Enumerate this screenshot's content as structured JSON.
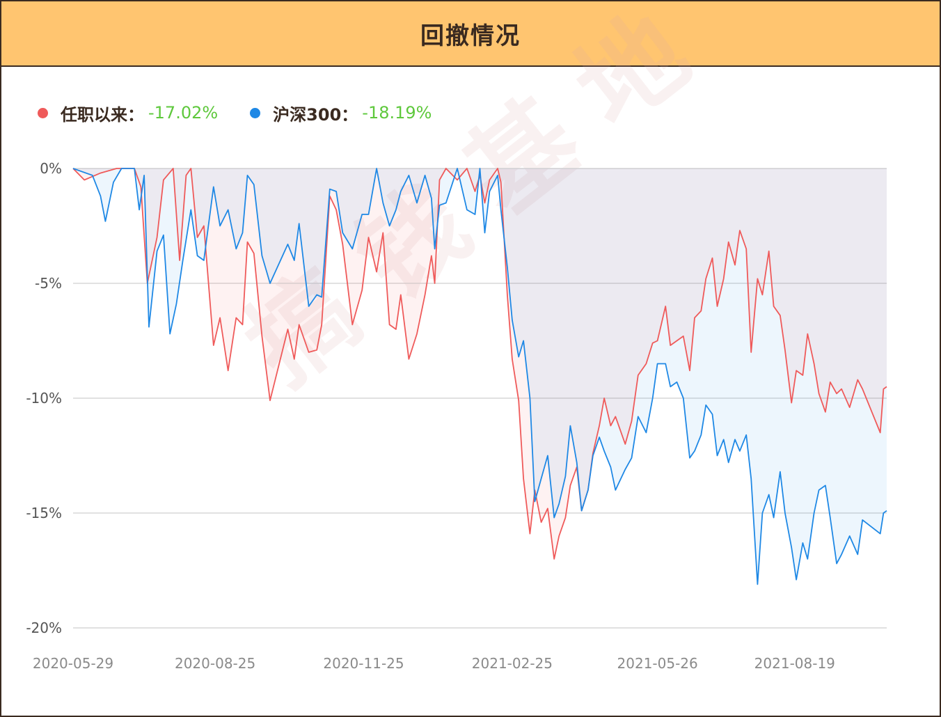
{
  "header": {
    "title": "回撤情况"
  },
  "legend": {
    "items": [
      {
        "name": "任职以来：",
        "value": "-17.02%",
        "color": "#ef5a5a"
      },
      {
        "name": "沪深300：",
        "value": "-18.19%",
        "color": "#1e88e5"
      }
    ]
  },
  "watermark": "搞钱基地",
  "chart_data": {
    "type": "area",
    "title": "回撤情况",
    "ylim": [
      -20,
      0
    ],
    "yticks": [
      "0%",
      "-5%",
      "-10%",
      "-15%",
      "-20%"
    ],
    "xticks": [
      "2020-05-29",
      "2020-08-25",
      "2020-11-25",
      "2021-02-25",
      "2021-05-26",
      "2021-08-19"
    ],
    "xlim": [
      "2020-05-29",
      "2021-10-15"
    ],
    "grid": true,
    "legend_position": "top-left",
    "series": [
      {
        "name": "任职以来",
        "color": "#ef5a5a",
        "fill": "rgba(239, 90, 90, 0.08)",
        "points": [
          [
            "2020-05-29",
            0
          ],
          [
            "2020-06-05",
            -0.5
          ],
          [
            "2020-06-15",
            -0.2
          ],
          [
            "2020-06-25",
            0
          ],
          [
            "2020-07-06",
            0
          ],
          [
            "2020-07-10",
            -0.8
          ],
          [
            "2020-07-14",
            -5.0
          ],
          [
            "2020-07-20",
            -3.0
          ],
          [
            "2020-07-24",
            -0.5
          ],
          [
            "2020-07-30",
            0
          ],
          [
            "2020-08-03",
            -4.0
          ],
          [
            "2020-08-07",
            -0.3
          ],
          [
            "2020-08-10",
            0
          ],
          [
            "2020-08-14",
            -3.0
          ],
          [
            "2020-08-18",
            -2.5
          ],
          [
            "2020-08-24",
            -7.7
          ],
          [
            "2020-08-28",
            -6.5
          ],
          [
            "2020-09-02",
            -8.8
          ],
          [
            "2020-09-07",
            -6.5
          ],
          [
            "2020-09-11",
            -6.8
          ],
          [
            "2020-09-14",
            -3.2
          ],
          [
            "2020-09-18",
            -3.7
          ],
          [
            "2020-09-23",
            -7.3
          ],
          [
            "2020-09-28",
            -10.1
          ],
          [
            "2020-10-09",
            -7.0
          ],
          [
            "2020-10-13",
            -8.3
          ],
          [
            "2020-10-16",
            -6.8
          ],
          [
            "2020-10-22",
            -8.0
          ],
          [
            "2020-10-27",
            -7.9
          ],
          [
            "2020-10-30",
            -6.8
          ],
          [
            "2020-11-04",
            -1.2
          ],
          [
            "2020-11-08",
            -1.8
          ],
          [
            "2020-11-12",
            -3.3
          ],
          [
            "2020-11-18",
            -6.8
          ],
          [
            "2020-11-24",
            -5.3
          ],
          [
            "2020-11-28",
            -3.0
          ],
          [
            "2020-12-03",
            -4.5
          ],
          [
            "2020-12-07",
            -2.8
          ],
          [
            "2020-12-11",
            -6.8
          ],
          [
            "2020-12-15",
            -7.0
          ],
          [
            "2020-12-18",
            -5.5
          ],
          [
            "2020-12-23",
            -8.3
          ],
          [
            "2020-12-28",
            -7.2
          ],
          [
            "2021-01-02",
            -5.5
          ],
          [
            "2021-01-06",
            -3.8
          ],
          [
            "2021-01-08",
            -5.0
          ],
          [
            "2021-01-11",
            -0.5
          ],
          [
            "2021-01-15",
            0
          ],
          [
            "2021-01-22",
            -0.5
          ],
          [
            "2021-01-28",
            0
          ],
          [
            "2021-02-02",
            -1.0
          ],
          [
            "2021-02-05",
            -0.3
          ],
          [
            "2021-02-08",
            -1.5
          ],
          [
            "2021-02-11",
            -0.5
          ],
          [
            "2021-02-16",
            0
          ],
          [
            "2021-02-18",
            -0.6
          ],
          [
            "2021-02-22",
            -5.5
          ],
          [
            "2021-02-25",
            -8.3
          ],
          [
            "2021-03-01",
            -10.1
          ],
          [
            "2021-03-04",
            -13.5
          ],
          [
            "2021-03-08",
            -15.9
          ],
          [
            "2021-03-11",
            -14.0
          ],
          [
            "2021-03-15",
            -15.4
          ],
          [
            "2021-03-19",
            -14.8
          ],
          [
            "2021-03-23",
            -17.0
          ],
          [
            "2021-03-26",
            -16.0
          ],
          [
            "2021-03-30",
            -15.2
          ],
          [
            "2021-04-02",
            -13.8
          ],
          [
            "2021-04-06",
            -13.0
          ],
          [
            "2021-04-09",
            -14.9
          ],
          [
            "2021-04-13",
            -14.0
          ],
          [
            "2021-04-16",
            -12.4
          ],
          [
            "2021-04-20",
            -11.2
          ],
          [
            "2021-04-23",
            -10.0
          ],
          [
            "2021-04-27",
            -11.2
          ],
          [
            "2021-04-30",
            -10.8
          ],
          [
            "2021-05-06",
            -12.0
          ],
          [
            "2021-05-10",
            -11.0
          ],
          [
            "2021-05-14",
            -9.0
          ],
          [
            "2021-05-19",
            -8.5
          ],
          [
            "2021-05-23",
            -7.6
          ],
          [
            "2021-05-26",
            -7.5
          ],
          [
            "2021-05-31",
            -6.0
          ],
          [
            "2021-06-03",
            -7.7
          ],
          [
            "2021-06-07",
            -7.5
          ],
          [
            "2021-06-11",
            -7.3
          ],
          [
            "2021-06-15",
            -8.8
          ],
          [
            "2021-06-18",
            -6.5
          ],
          [
            "2021-06-22",
            -6.2
          ],
          [
            "2021-06-25",
            -4.8
          ],
          [
            "2021-06-29",
            -3.9
          ],
          [
            "2021-07-02",
            -6.0
          ],
          [
            "2021-07-06",
            -4.8
          ],
          [
            "2021-07-09",
            -3.2
          ],
          [
            "2021-07-13",
            -4.2
          ],
          [
            "2021-07-16",
            -2.7
          ],
          [
            "2021-07-20",
            -3.5
          ],
          [
            "2021-07-23",
            -8.0
          ],
          [
            "2021-07-27",
            -4.8
          ],
          [
            "2021-07-30",
            -5.5
          ],
          [
            "2021-08-03",
            -3.6
          ],
          [
            "2021-08-06",
            -6.0
          ],
          [
            "2021-08-10",
            -6.4
          ],
          [
            "2021-08-13",
            -7.9
          ],
          [
            "2021-08-17",
            -10.2
          ],
          [
            "2021-08-20",
            -8.8
          ],
          [
            "2021-08-24",
            -9.0
          ],
          [
            "2021-08-27",
            -7.2
          ],
          [
            "2021-08-31",
            -8.5
          ],
          [
            "2021-09-03",
            -9.8
          ],
          [
            "2021-09-07",
            -10.6
          ],
          [
            "2021-09-10",
            -9.3
          ],
          [
            "2021-09-14",
            -9.8
          ],
          [
            "2021-09-17",
            -9.6
          ],
          [
            "2021-09-22",
            -10.4
          ],
          [
            "2021-09-27",
            -9.2
          ],
          [
            "2021-09-30",
            -9.6
          ],
          [
            "2021-10-11",
            -11.5
          ],
          [
            "2021-10-13",
            -9.6
          ],
          [
            "2021-10-15",
            -9.5
          ]
        ]
      },
      {
        "name": "沪深300",
        "color": "#1e88e5",
        "fill": "rgba(30, 136, 229, 0.08)",
        "points": [
          [
            "2020-05-29",
            0
          ],
          [
            "2020-06-10",
            -0.3
          ],
          [
            "2020-06-15",
            -1.2
          ],
          [
            "2020-06-18",
            -2.3
          ],
          [
            "2020-06-23",
            -0.6
          ],
          [
            "2020-06-28",
            0
          ],
          [
            "2020-07-06",
            0
          ],
          [
            "2020-07-09",
            -1.8
          ],
          [
            "2020-07-12",
            -0.3
          ],
          [
            "2020-07-15",
            -6.9
          ],
          [
            "2020-07-20",
            -3.6
          ],
          [
            "2020-07-24",
            -2.9
          ],
          [
            "2020-07-28",
            -7.2
          ],
          [
            "2020-08-01",
            -5.9
          ],
          [
            "2020-08-05",
            -4.0
          ],
          [
            "2020-08-10",
            -1.8
          ],
          [
            "2020-08-14",
            -3.8
          ],
          [
            "2020-08-18",
            -4.0
          ],
          [
            "2020-08-24",
            -0.8
          ],
          [
            "2020-08-28",
            -2.5
          ],
          [
            "2020-09-02",
            -1.8
          ],
          [
            "2020-09-07",
            -3.5
          ],
          [
            "2020-09-11",
            -2.8
          ],
          [
            "2020-09-14",
            -0.3
          ],
          [
            "2020-09-18",
            -0.7
          ],
          [
            "2020-09-23",
            -3.8
          ],
          [
            "2020-09-28",
            -5.0
          ],
          [
            "2020-10-09",
            -3.3
          ],
          [
            "2020-10-13",
            -4.0
          ],
          [
            "2020-10-16",
            -2.4
          ],
          [
            "2020-10-22",
            -6.0
          ],
          [
            "2020-10-27",
            -5.5
          ],
          [
            "2020-10-30",
            -5.6
          ],
          [
            "2020-11-04",
            -0.9
          ],
          [
            "2020-11-08",
            -1.0
          ],
          [
            "2020-11-12",
            -2.8
          ],
          [
            "2020-11-18",
            -3.5
          ],
          [
            "2020-11-24",
            -2.0
          ],
          [
            "2020-11-28",
            -2.0
          ],
          [
            "2020-12-03",
            0
          ],
          [
            "2020-12-07",
            -1.5
          ],
          [
            "2020-12-11",
            -2.5
          ],
          [
            "2020-12-15",
            -1.8
          ],
          [
            "2020-12-18",
            -1.0
          ],
          [
            "2020-12-23",
            -0.3
          ],
          [
            "2020-12-28",
            -1.5
          ],
          [
            "2021-01-02",
            -0.3
          ],
          [
            "2021-01-06",
            -1.3
          ],
          [
            "2021-01-08",
            -3.5
          ],
          [
            "2021-01-11",
            -1.6
          ],
          [
            "2021-01-15",
            -1.5
          ],
          [
            "2021-01-22",
            0
          ],
          [
            "2021-01-28",
            -1.8
          ],
          [
            "2021-02-02",
            -2.0
          ],
          [
            "2021-02-05",
            0
          ],
          [
            "2021-02-08",
            -2.8
          ],
          [
            "2021-02-11",
            -1.0
          ],
          [
            "2021-02-16",
            -0.3
          ],
          [
            "2021-02-18",
            -1.8
          ],
          [
            "2021-02-22",
            -4.3
          ],
          [
            "2021-02-25",
            -6.6
          ],
          [
            "2021-03-01",
            -8.2
          ],
          [
            "2021-03-04",
            -7.5
          ],
          [
            "2021-03-08",
            -10.0
          ],
          [
            "2021-03-11",
            -14.5
          ],
          [
            "2021-03-15",
            -13.5
          ],
          [
            "2021-03-19",
            -12.5
          ],
          [
            "2021-03-23",
            -15.2
          ],
          [
            "2021-03-26",
            -14.6
          ],
          [
            "2021-03-30",
            -13.4
          ],
          [
            "2021-04-02",
            -11.2
          ],
          [
            "2021-04-06",
            -12.8
          ],
          [
            "2021-04-09",
            -14.9
          ],
          [
            "2021-04-13",
            -14.0
          ],
          [
            "2021-04-16",
            -12.5
          ],
          [
            "2021-04-20",
            -11.7
          ],
          [
            "2021-04-23",
            -12.3
          ],
          [
            "2021-04-27",
            -13.0
          ],
          [
            "2021-04-30",
            -14.0
          ],
          [
            "2021-05-06",
            -13.1
          ],
          [
            "2021-05-10",
            -12.6
          ],
          [
            "2021-05-14",
            -10.8
          ],
          [
            "2021-05-19",
            -11.5
          ],
          [
            "2021-05-23",
            -10.0
          ],
          [
            "2021-05-26",
            -8.5
          ],
          [
            "2021-05-31",
            -8.5
          ],
          [
            "2021-06-03",
            -9.5
          ],
          [
            "2021-06-07",
            -9.3
          ],
          [
            "2021-06-11",
            -10.0
          ],
          [
            "2021-06-15",
            -12.6
          ],
          [
            "2021-06-18",
            -12.3
          ],
          [
            "2021-06-22",
            -11.6
          ],
          [
            "2021-06-25",
            -10.3
          ],
          [
            "2021-06-29",
            -10.7
          ],
          [
            "2021-07-02",
            -12.5
          ],
          [
            "2021-07-06",
            -11.8
          ],
          [
            "2021-07-09",
            -12.8
          ],
          [
            "2021-07-13",
            -11.8
          ],
          [
            "2021-07-16",
            -12.3
          ],
          [
            "2021-07-20",
            -11.6
          ],
          [
            "2021-07-23",
            -13.5
          ],
          [
            "2021-07-27",
            -18.1
          ],
          [
            "2021-07-30",
            -15.0
          ],
          [
            "2021-08-03",
            -14.2
          ],
          [
            "2021-08-06",
            -15.2
          ],
          [
            "2021-08-10",
            -13.2
          ],
          [
            "2021-08-13",
            -15.0
          ],
          [
            "2021-08-17",
            -16.5
          ],
          [
            "2021-08-20",
            -17.9
          ],
          [
            "2021-08-24",
            -16.3
          ],
          [
            "2021-08-27",
            -17.0
          ],
          [
            "2021-08-31",
            -15.0
          ],
          [
            "2021-09-03",
            -14.0
          ],
          [
            "2021-09-07",
            -13.8
          ],
          [
            "2021-09-10",
            -15.2
          ],
          [
            "2021-09-14",
            -17.2
          ],
          [
            "2021-09-17",
            -16.8
          ],
          [
            "2021-09-22",
            -16.0
          ],
          [
            "2021-09-27",
            -16.8
          ],
          [
            "2021-09-30",
            -15.3
          ],
          [
            "2021-10-11",
            -15.9
          ],
          [
            "2021-10-13",
            -15.0
          ],
          [
            "2021-10-15",
            -14.9
          ]
        ]
      }
    ]
  }
}
